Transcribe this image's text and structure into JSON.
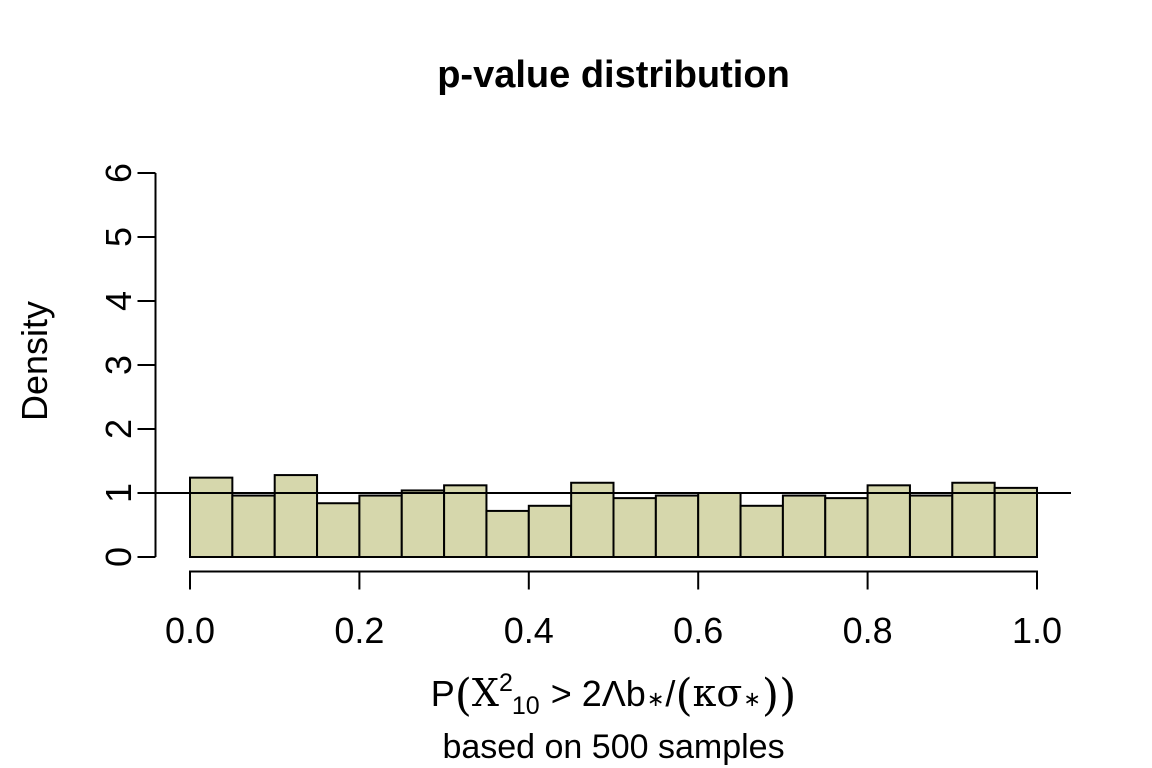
{
  "chart_data": {
    "type": "bar",
    "subtype": "histogram",
    "title": "p-value distribution",
    "ylabel": "Density",
    "xlabel_plain": "P(X²₁₀ > 2Λb∗/(κσ∗))",
    "xlabel_note": "based on 500 samples",
    "n_samples": 500,
    "bin_width": 0.05,
    "bin_edges": [
      0.0,
      0.05,
      0.1,
      0.15,
      0.2,
      0.25,
      0.3,
      0.35,
      0.4,
      0.45,
      0.5,
      0.55,
      0.6,
      0.65,
      0.7,
      0.75,
      0.8,
      0.85,
      0.9,
      0.95,
      1.0
    ],
    "densities": [
      1.24,
      0.96,
      1.28,
      0.84,
      0.96,
      1.04,
      1.12,
      0.72,
      0.8,
      1.16,
      0.92,
      0.96,
      1.0,
      0.8,
      0.96,
      0.92,
      1.12,
      0.96,
      1.16,
      1.08
    ],
    "counts": [
      31,
      24,
      32,
      21,
      24,
      26,
      28,
      18,
      20,
      29,
      23,
      24,
      25,
      20,
      24,
      23,
      28,
      24,
      29,
      27
    ],
    "xlim": [
      0,
      1
    ],
    "ylim": [
      0,
      6
    ],
    "xticks": [
      0.0,
      0.2,
      0.4,
      0.6,
      0.8,
      1.0
    ],
    "xtick_labels": [
      "0.0",
      "0.2",
      "0.4",
      "0.6",
      "0.8",
      "1.0"
    ],
    "yticks": [
      0,
      1,
      2,
      3,
      4,
      5,
      6
    ],
    "ytick_labels": [
      "0",
      "1",
      "2",
      "3",
      "4",
      "5",
      "6"
    ],
    "reference_line_y": 1,
    "grid": false,
    "legend": "none",
    "colors": {
      "bar_fill": "#d6d7ac",
      "bar_border": "#000000",
      "axis": "#000000",
      "reference_line": "#000000",
      "background": "#ffffff"
    }
  },
  "formula": {
    "P": "P",
    "lparen_outer": "(",
    "chi": "X",
    "sup": "2",
    "sub": "10",
    "gt": " > ",
    "coef": "2Λb",
    "star1": "∗",
    "slash": "/",
    "lparen_inner": "(",
    "kappa_sigma": "κσ",
    "star2": "∗",
    "rparen_inner": ")",
    "rparen_outer": ")"
  }
}
